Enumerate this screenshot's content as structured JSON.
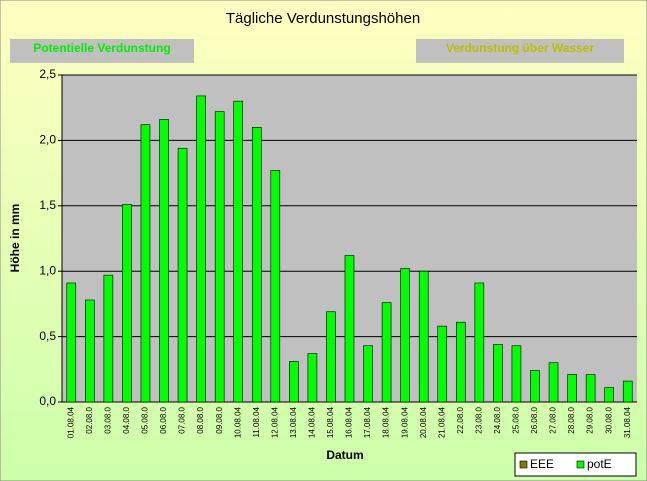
{
  "chart_data": {
    "type": "bar",
    "title": "Tägliche Verdunstungshöhen",
    "buttons": [
      "Potentielle Verdunstung",
      "Verdunstung über Wasser"
    ],
    "y_label": "Höhe in mm",
    "x_label": "Datum",
    "categories": [
      "01.08.04",
      "02.08.0",
      "03.08.0",
      "04.08.0",
      "05.08.0",
      "06.08.0",
      "07.08.0",
      "08.08.0",
      "09.08.0",
      "10.08.04",
      "11.08.04",
      "12.08.04",
      "13.08.04",
      "14.08.04",
      "15.08.04",
      "16.08.04",
      "17.08.04",
      "18.08.04",
      "19.08.04",
      "20.08.04",
      "21.08.04",
      "22.08.0",
      "23.08.0",
      "24.08.0",
      "25.08.0",
      "26.08.0",
      "27.08.0",
      "28.08.0",
      "29.08.0",
      "30.08.0",
      "31.08.04"
    ],
    "series": [
      {
        "name": "EEE",
        "color": "#808000",
        "values": [
          null,
          null,
          null,
          null,
          null,
          null,
          null,
          null,
          null,
          null,
          null,
          null,
          null,
          null,
          null,
          null,
          null,
          null,
          null,
          null,
          null,
          null,
          null,
          null,
          null,
          null,
          null,
          null,
          null,
          null,
          null
        ]
      },
      {
        "name": "potE",
        "color": "#00ff00",
        "values": [
          0.91,
          0.78,
          0.97,
          1.51,
          2.12,
          2.16,
          1.94,
          2.34,
          2.22,
          2.3,
          2.1,
          1.77,
          0.31,
          0.37,
          0.69,
          1.12,
          0.43,
          0.76,
          1.02,
          1.0,
          0.58,
          0.61,
          0.91,
          0.44,
          0.43,
          0.24,
          0.3,
          0.21,
          0.21,
          0.11,
          0.16
        ]
      }
    ],
    "ylim": [
      0,
      2.5
    ],
    "yticks": [
      {
        "value": 0,
        "label": "0,0"
      },
      {
        "value": 0.5,
        "label": "0,5"
      },
      {
        "value": 1,
        "label": "1,0"
      },
      {
        "value": 1.5,
        "label": "1,5"
      },
      {
        "value": 2,
        "label": "2,0"
      },
      {
        "value": 2.5,
        "label": "2,5"
      }
    ],
    "grid": true,
    "legend": "bottom-right"
  }
}
